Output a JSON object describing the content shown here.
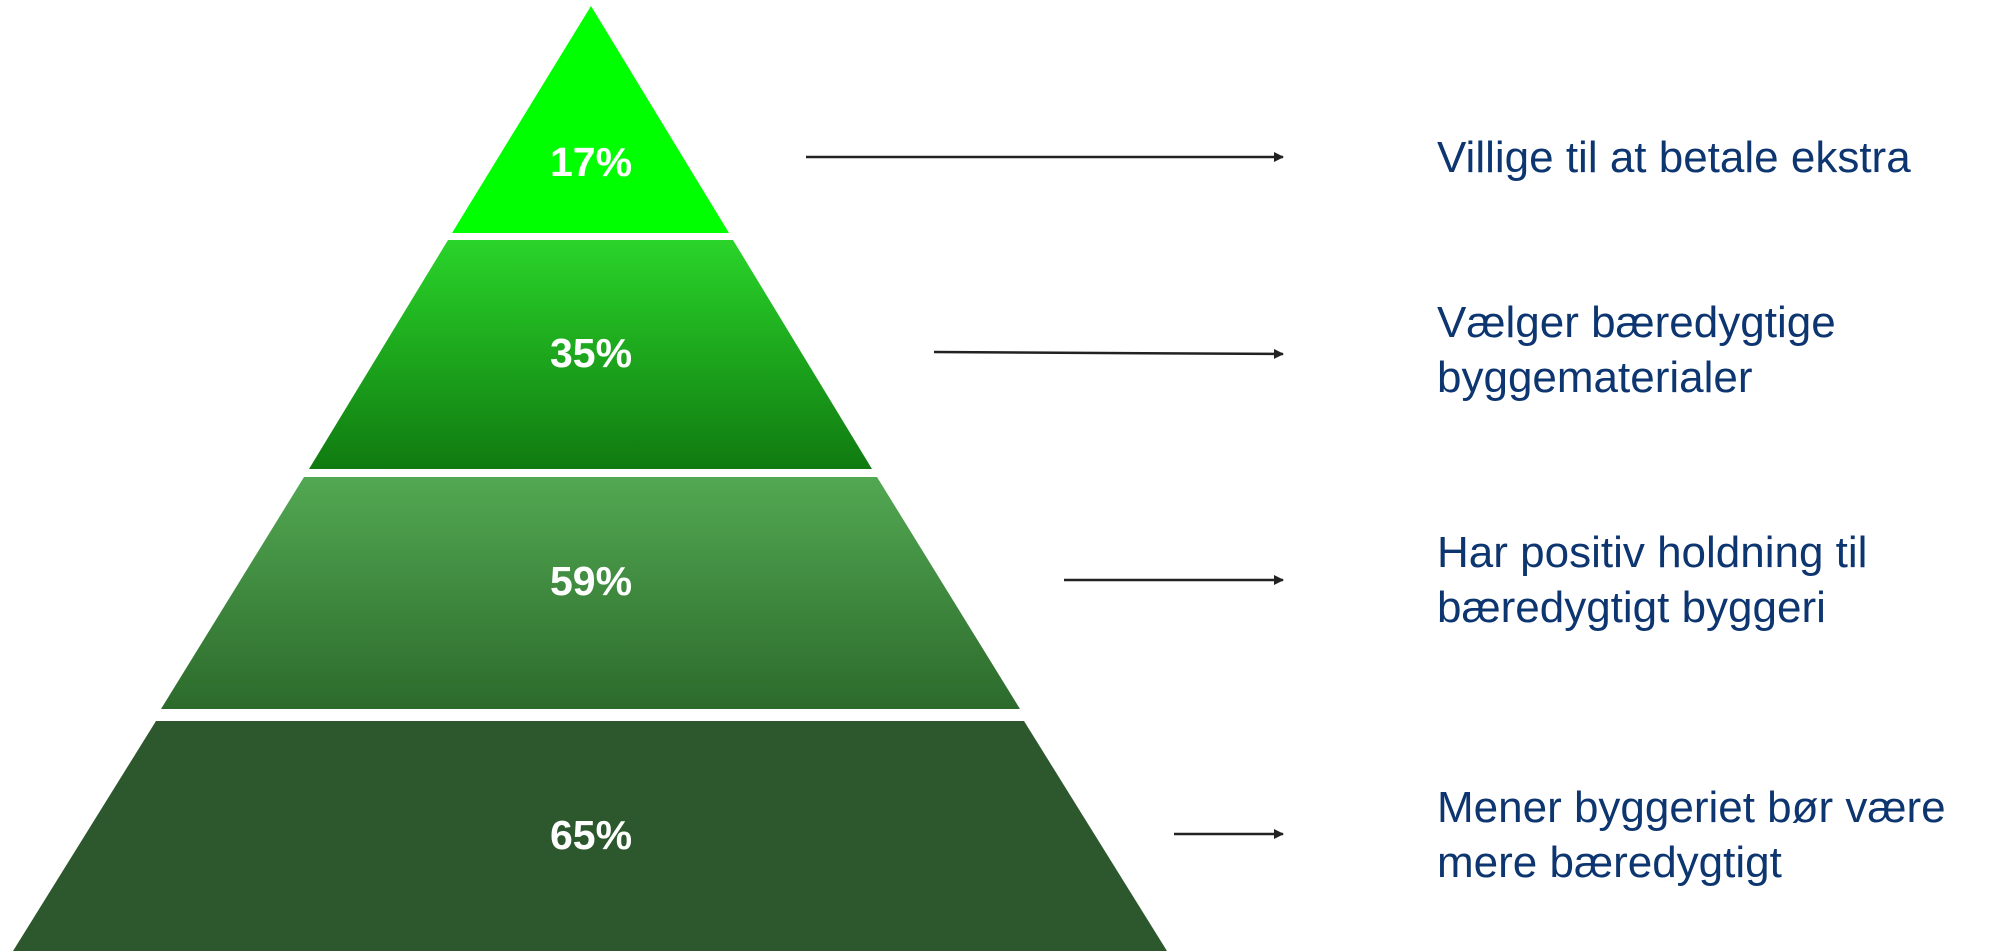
{
  "diagram": {
    "type": "pyramid",
    "tiers": [
      {
        "value": "17%",
        "caption": [
          "Villige til at betale ekstra"
        ],
        "color_top": "#00ff00",
        "color_bottom": "#00ff00"
      },
      {
        "value": "35%",
        "caption": [
          "Vælger bæredygtige",
          "byggematerialer"
        ],
        "color_top": "#2ad42a",
        "color_bottom": "#107a10"
      },
      {
        "value": "59%",
        "caption": [
          "Har positiv holdning til",
          "bæredygtigt byggeri"
        ],
        "color_top": "#52a852",
        "color_bottom": "#2c6a2c"
      },
      {
        "value": "65%",
        "caption": [
          "Mener byggeriet bør være",
          "mere bæredygtigt"
        ],
        "color_top": "#2d572d",
        "color_bottom": "#2d572d"
      }
    ],
    "caption_color": "#0d3570",
    "arrow_color": "#222222",
    "label_color": "#ffffff"
  }
}
